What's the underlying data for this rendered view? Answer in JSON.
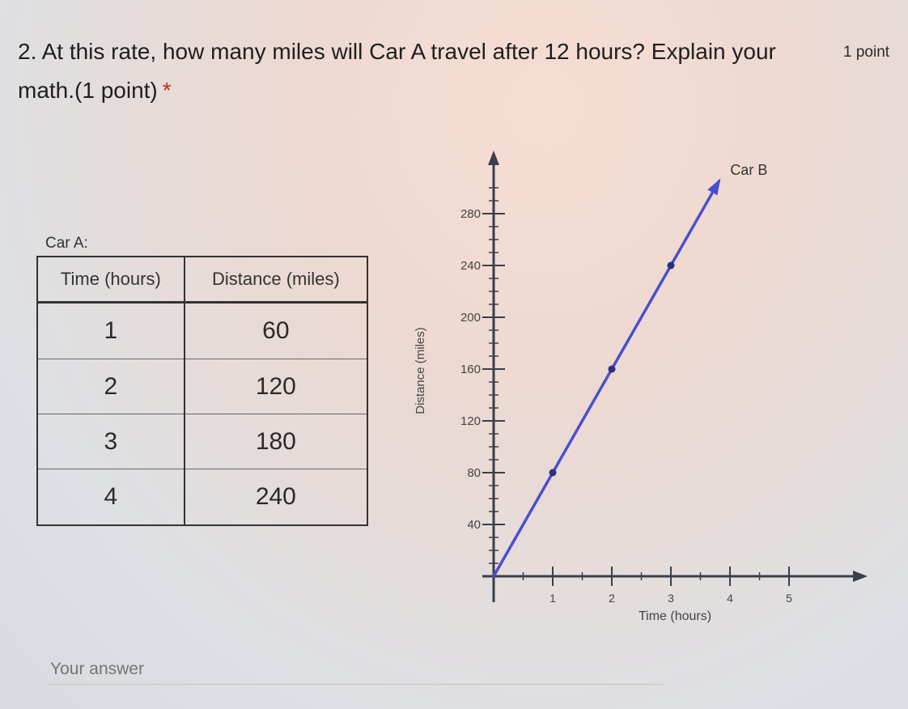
{
  "question": {
    "text": "2. At this rate, how many miles will Car A travel after 12 hours? Explain your math.(1 point)",
    "required_mark": "*",
    "points": "1 point"
  },
  "table": {
    "caption": "Car A:",
    "headers": [
      "Time (hours)",
      "Distance (miles)"
    ],
    "rows": [
      [
        "1",
        "60"
      ],
      [
        "2",
        "120"
      ],
      [
        "3",
        "180"
      ],
      [
        "4",
        "240"
      ]
    ]
  },
  "chart_data": {
    "type": "line",
    "xlabel": "Time (hours)",
    "ylabel": "Distance (miles)",
    "x_ticks": [
      1,
      2,
      3,
      4,
      5
    ],
    "y_ticks": [
      40,
      80,
      120,
      160,
      200,
      240,
      280
    ],
    "xlim": [
      0,
      5.6
    ],
    "ylim": [
      0,
      300
    ],
    "series": [
      {
        "name": "Car B",
        "color": "#4a4fd1",
        "x": [
          0,
          1,
          2,
          3,
          4
        ],
        "y": [
          0,
          80,
          160,
          240,
          320
        ],
        "points": [
          [
            1,
            80
          ],
          [
            2,
            160
          ],
          [
            3,
            240
          ]
        ]
      }
    ]
  },
  "answer": {
    "placeholder": "Your answer"
  }
}
